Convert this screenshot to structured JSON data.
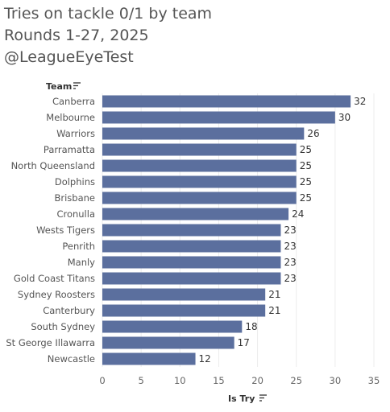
{
  "chart_data": {
    "type": "bar",
    "orientation": "horizontal",
    "title_lines": [
      "Tries on tackle 0/1 by team",
      "Rounds 1-27, 2025",
      "@LeagueEyeTest"
    ],
    "row_header": "Team",
    "xlabel": "Is Try",
    "categories": [
      "Canberra",
      "Melbourne",
      "Warriors",
      "Parramatta",
      "North Queensland",
      "Dolphins",
      "Brisbane",
      "Cronulla",
      "Wests Tigers",
      "Penrith",
      "Manly",
      "Gold Coast Titans",
      "Sydney Roosters",
      "Canterbury",
      "South Sydney",
      "St George Illawarra",
      "Newcastle"
    ],
    "values": [
      32,
      30,
      26,
      25,
      25,
      25,
      25,
      24,
      23,
      23,
      23,
      23,
      21,
      21,
      18,
      17,
      12
    ],
    "xlim": [
      0,
      35
    ],
    "xticks": [
      0,
      5,
      10,
      15,
      20,
      25,
      30,
      35
    ],
    "grid": "vertical",
    "bar_color": "#5b6f9e"
  }
}
